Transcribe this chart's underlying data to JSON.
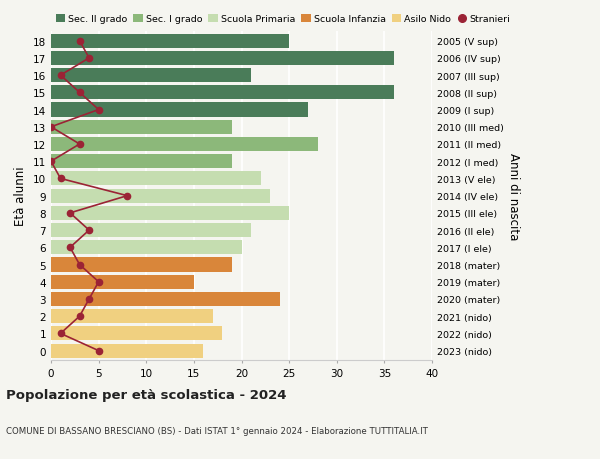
{
  "ages": [
    18,
    17,
    16,
    15,
    14,
    13,
    12,
    11,
    10,
    9,
    8,
    7,
    6,
    5,
    4,
    3,
    2,
    1,
    0
  ],
  "years": [
    "2005 (V sup)",
    "2006 (IV sup)",
    "2007 (III sup)",
    "2008 (II sup)",
    "2009 (I sup)",
    "2010 (III med)",
    "2011 (II med)",
    "2012 (I med)",
    "2013 (V ele)",
    "2014 (IV ele)",
    "2015 (III ele)",
    "2016 (II ele)",
    "2017 (I ele)",
    "2018 (mater)",
    "2019 (mater)",
    "2020 (mater)",
    "2021 (nido)",
    "2022 (nido)",
    "2023 (nido)"
  ],
  "bar_values": [
    25,
    36,
    21,
    36,
    27,
    19,
    28,
    19,
    22,
    23,
    25,
    21,
    20,
    19,
    15,
    24,
    17,
    18,
    16
  ],
  "bar_colors": [
    "#4a7c59",
    "#4a7c59",
    "#4a7c59",
    "#4a7c59",
    "#4a7c59",
    "#8cb87a",
    "#8cb87a",
    "#8cb87a",
    "#c5ddb0",
    "#c5ddb0",
    "#c5ddb0",
    "#c5ddb0",
    "#c5ddb0",
    "#d9863a",
    "#d9863a",
    "#d9863a",
    "#f0d080",
    "#f0d080",
    "#f0d080"
  ],
  "stranieri_values": [
    3,
    4,
    1,
    3,
    5,
    0,
    3,
    0,
    1,
    8,
    2,
    4,
    2,
    3,
    5,
    4,
    3,
    1,
    5
  ],
  "stranieri_color": "#9b2335",
  "title": "Popolazione per età scolastica - 2024",
  "subtitle": "COMUNE DI BASSANO BRESCIANO (BS) - Dati ISTAT 1° gennaio 2024 - Elaborazione TUTTITALIA.IT",
  "ylabel_left": "Età alunni",
  "ylabel_right": "Anni di nascita",
  "xlim": [
    0,
    40
  ],
  "xticks": [
    0,
    5,
    10,
    15,
    20,
    25,
    30,
    35,
    40
  ],
  "legend_labels": [
    "Sec. II grado",
    "Sec. I grado",
    "Scuola Primaria",
    "Scuola Infanzia",
    "Asilo Nido",
    "Stranieri"
  ],
  "legend_colors": [
    "#4a7c59",
    "#8cb87a",
    "#c5ddb0",
    "#d9863a",
    "#f0d080",
    "#9b2335"
  ],
  "background_color": "#f5f5f0",
  "grid_color": "#ffffff",
  "bar_height": 0.82
}
